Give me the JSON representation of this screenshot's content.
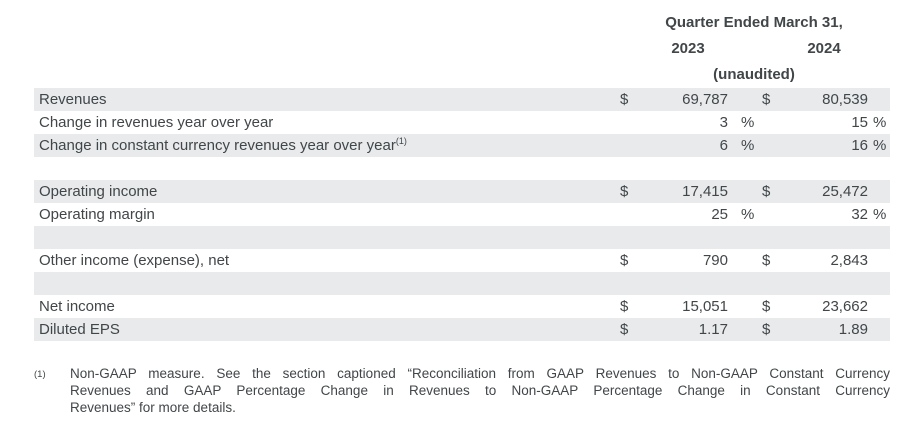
{
  "header": {
    "title": "Quarter Ended March 31,",
    "year_2023": "2023",
    "year_2024": "2024",
    "unaudited": "(unaudited)"
  },
  "table": {
    "rows": [
      {
        "label": "Revenues",
        "sup": "",
        "d1": "$",
        "v1": "69,787",
        "p1": "",
        "d2": "$",
        "v2": "80,539",
        "p2": ""
      },
      {
        "label": "Change in revenues year over year",
        "sup": "",
        "d1": "",
        "v1": "3",
        "p1": "%",
        "d2": "",
        "v2": "15",
        "p2": "%"
      },
      {
        "label": "Change in constant currency revenues year over year",
        "sup": "(1)",
        "d1": "",
        "v1": "6",
        "p1": "%",
        "d2": "",
        "v2": "16",
        "p2": "%"
      },
      {
        "label": "",
        "sup": "",
        "d1": "",
        "v1": "",
        "p1": "",
        "d2": "",
        "v2": "",
        "p2": ""
      },
      {
        "label": "Operating income",
        "sup": "",
        "d1": "$",
        "v1": "17,415",
        "p1": "",
        "d2": "$",
        "v2": "25,472",
        "p2": ""
      },
      {
        "label": "Operating margin",
        "sup": "",
        "d1": "",
        "v1": "25",
        "p1": "%",
        "d2": "",
        "v2": "32",
        "p2": "%"
      },
      {
        "label": "",
        "sup": "",
        "d1": "",
        "v1": "",
        "p1": "",
        "d2": "",
        "v2": "",
        "p2": ""
      },
      {
        "label": "Other income (expense), net",
        "sup": "",
        "d1": "$",
        "v1": "790",
        "p1": "",
        "d2": "$",
        "v2": "2,843",
        "p2": ""
      },
      {
        "label": "",
        "sup": "",
        "d1": "",
        "v1": "",
        "p1": "",
        "d2": "",
        "v2": "",
        "p2": ""
      },
      {
        "label": "Net income",
        "sup": "",
        "d1": "$",
        "v1": "15,051",
        "p1": "",
        "d2": "$",
        "v2": "23,662",
        "p2": ""
      },
      {
        "label": "Diluted EPS",
        "sup": "",
        "d1": "$",
        "v1": "1.17",
        "p1": "",
        "d2": "$",
        "v2": "1.89",
        "p2": ""
      }
    ]
  },
  "footnote": {
    "marker": "(1)",
    "lines": [
      "Non-GAAP measure. See the section captioned “Reconciliation from GAAP Revenues to Non-GAAP Constant Currency",
      "Revenues and GAAP Percentage Change in Revenues to Non-GAAP Percentage Change in Constant Currency",
      "Revenues” for more details."
    ]
  }
}
